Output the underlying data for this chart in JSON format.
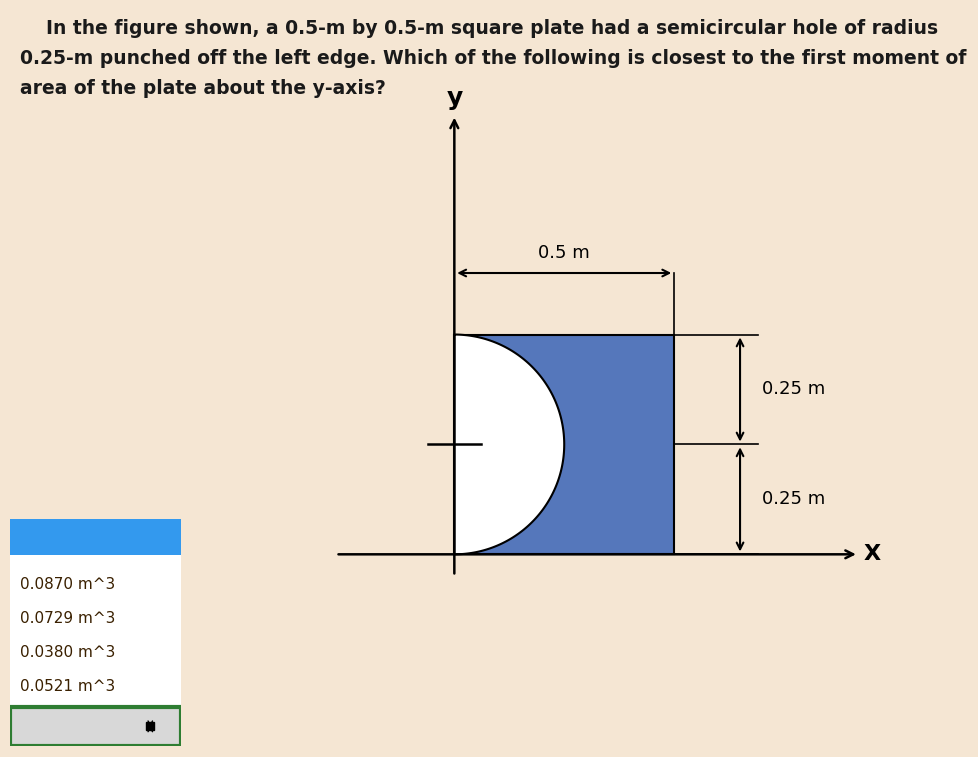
{
  "bg_color": "#f5e6d3",
  "panel_bg": "#ffffff",
  "title_line1": "    In the figure shown, a 0.5-m by 0.5-m square plate had a semicircular hole of radius",
  "title_line2": "0.25-m punched off the left edge. Which of the following is closest to the first moment of",
  "title_line3": "area of the plate about the y-axis?",
  "title_color": "#1a1a1a",
  "title_fontsize": 13.5,
  "plate_color": "#5577bb",
  "dropdown_options": [
    "0.0870 m^3",
    "0.0729 m^3",
    "0.0380 m^3",
    "0.0521 m^3"
  ],
  "dropdown_header_color": "#3399ee",
  "dropdown_border_color": "#2e7d32",
  "label_x": "X",
  "label_y": "y",
  "label_05m": "0.5 m",
  "label_025m": "0.25 m"
}
